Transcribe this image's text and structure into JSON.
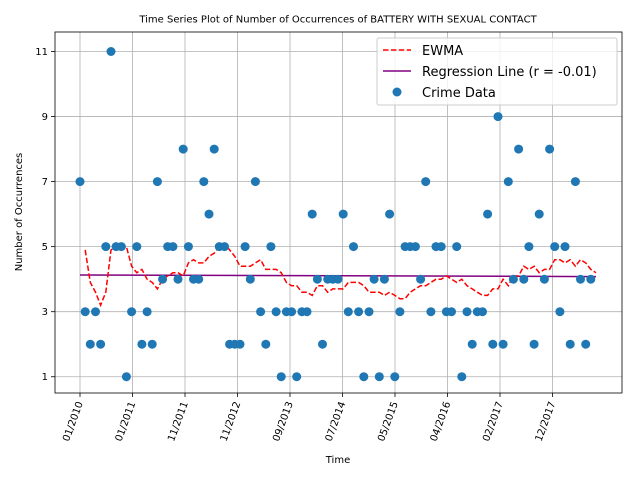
{
  "chart_data": {
    "type": "scatter",
    "title": "Time Series Plot of Number of Occurrences of BATTERY WITH SEXUAL CONTACT",
    "xlabel": "Time",
    "ylabel": "Number of Occurrences",
    "x_ticks": [
      "01/2010",
      "01/2011",
      "11/2011",
      "11/2012",
      "09/2013",
      "07/2014",
      "05/2015",
      "04/2016",
      "02/2017",
      "12/2017"
    ],
    "y_ticks": [
      1,
      3,
      5,
      7,
      9,
      11
    ],
    "ylim": [
      0.5,
      11.6
    ],
    "grid": true,
    "legend_position": "top-right",
    "legend": {
      "ewma_label": "EWMA",
      "regression_label": "Regression Line (r = -0.01)",
      "data_label": "Crime Data"
    },
    "colors": {
      "data": "#1f77b4",
      "ewma": "#ff0000",
      "regression": "#800080"
    },
    "x_index_range": [
      0,
      100
    ],
    "regression": {
      "start": 4.13,
      "end": 4.08
    },
    "values": [
      7,
      3,
      2,
      3,
      2,
      5,
      11,
      5,
      5,
      1,
      3,
      5,
      2,
      3,
      2,
      7,
      4,
      5,
      5,
      4,
      8,
      5,
      4,
      4,
      7,
      6,
      8,
      5,
      5,
      2,
      2,
      2,
      5,
      4,
      7,
      3,
      2,
      5,
      3,
      1,
      3,
      3,
      1,
      3,
      3,
      6,
      4,
      2,
      4,
      4,
      4,
      6,
      3,
      5,
      3,
      1,
      3,
      4,
      1,
      4,
      6,
      1,
      3,
      5,
      5,
      5,
      4,
      7,
      3,
      5,
      5,
      3,
      3,
      5,
      1,
      3,
      2,
      3,
      3,
      6,
      2,
      9,
      2,
      7,
      4,
      8,
      4,
      5,
      2,
      6,
      4,
      8,
      5,
      3,
      5,
      2,
      7,
      4,
      2,
      4
    ],
    "ewma": [
      4.9,
      3.9,
      3.6,
      3.2,
      3.6,
      4.9,
      5.0,
      4.9,
      5.0,
      4.4,
      4.2,
      4.3,
      4.0,
      3.9,
      3.7,
      4.0,
      4.1,
      4.2,
      4.2,
      4.1,
      4.5,
      4.6,
      4.5,
      4.5,
      4.7,
      4.8,
      5.0,
      5.1,
      4.9,
      4.7,
      4.4,
      4.4,
      4.4,
      4.5,
      4.6,
      4.3,
      4.3,
      4.3,
      4.2,
      3.9,
      3.8,
      3.8,
      3.6,
      3.6,
      3.5,
      3.8,
      3.8,
      3.6,
      3.7,
      3.7,
      3.7,
      3.9,
      3.9,
      3.9,
      3.8,
      3.6,
      3.6,
      3.6,
      3.5,
      3.6,
      3.5,
      3.4,
      3.4,
      3.6,
      3.7,
      3.8,
      3.8,
      3.9,
      4.0,
      4.0,
      4.1,
      4.0,
      3.9,
      4.0,
      3.8,
      3.7,
      3.6,
      3.5,
      3.5,
      3.7,
      3.7,
      4.0,
      3.8,
      4.1,
      4.1,
      4.4,
      4.3,
      4.4,
      4.2,
      4.3,
      4.3,
      4.6,
      4.6,
      4.5,
      4.6,
      4.4,
      4.6,
      4.5,
      4.3,
      4.2
    ]
  }
}
